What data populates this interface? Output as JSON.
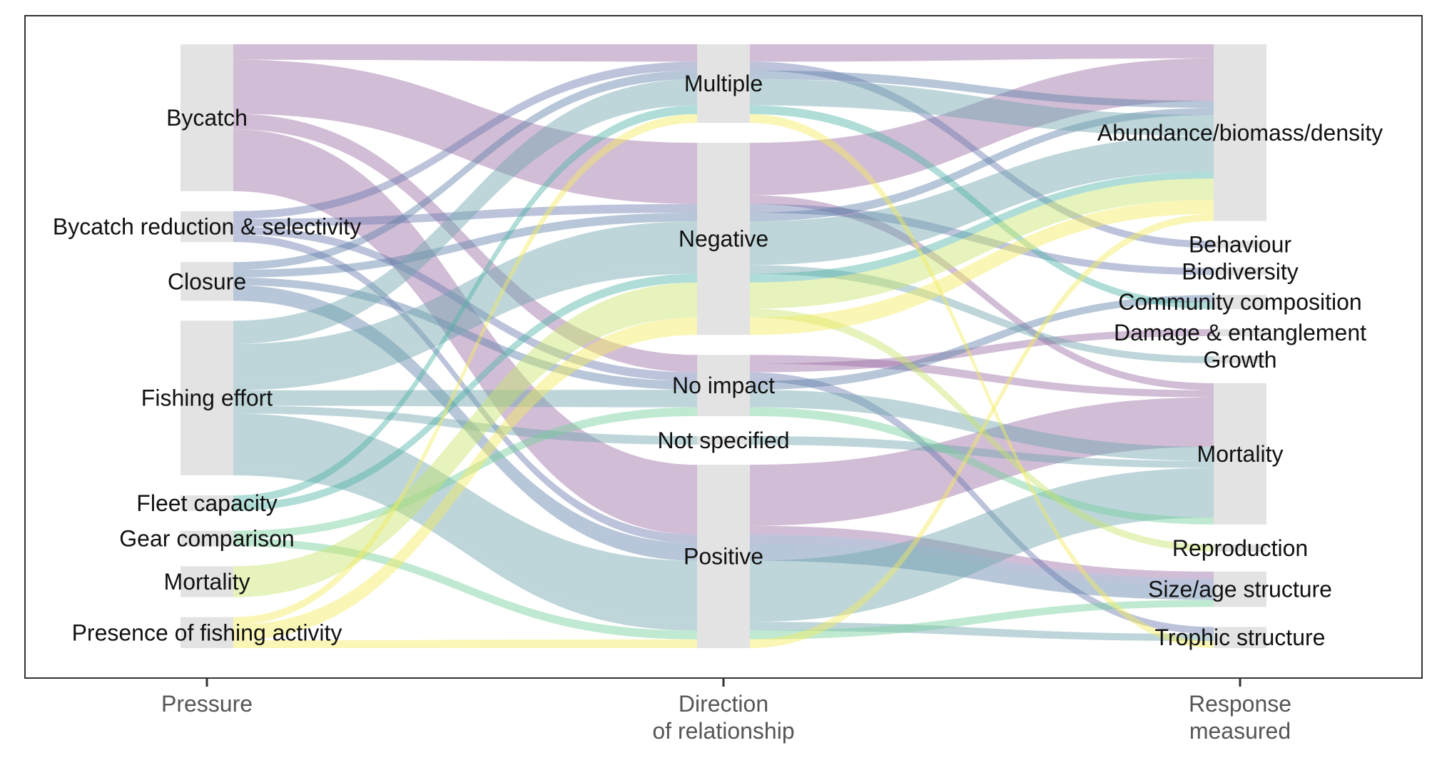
{
  "chart_data": {
    "type": "alluvial",
    "axes": [
      {
        "label_lines": [
          "Pressure"
        ]
      },
      {
        "label_lines": [
          "Direction",
          "of relationship"
        ]
      },
      {
        "label_lines": [
          "Response",
          "measured"
        ]
      }
    ],
    "nodes": {
      "pressure": [
        "Bycatch",
        "Bycatch reduction & selectivity",
        "Closure",
        "Fishing effort",
        "Fleet capacity",
        "Gear comparison",
        "Mortality",
        "Presence of fishing activity"
      ],
      "direction": [
        "Multiple",
        "Negative",
        "No impact",
        "Not specified",
        "Positive"
      ],
      "response": [
        "Abundance/biomass/density",
        "Behaviour",
        "Biodiversity",
        "Community composition",
        "Damage & entanglement",
        "Growth",
        "Mortality",
        "Reproduction",
        "Size/age structure",
        "Trophic structure"
      ]
    },
    "flows": [
      [
        "Bycatch",
        "Multiple",
        "Abundance/biomass/density",
        2
      ],
      [
        "Bycatch",
        "Negative",
        "Abundance/biomass/density",
        6
      ],
      [
        "Bycatch",
        "Negative",
        "Mortality",
        1
      ],
      [
        "Bycatch",
        "No impact",
        "Mortality",
        1
      ],
      [
        "Bycatch",
        "No impact",
        "Damage & entanglement",
        1
      ],
      [
        "Bycatch",
        "Positive",
        "Mortality",
        7
      ],
      [
        "Bycatch",
        "Positive",
        "Size/age structure",
        1
      ],
      [
        "Bycatch reduction & selectivity",
        "Multiple",
        "Behaviour",
        1
      ],
      [
        "Bycatch reduction & selectivity",
        "Negative",
        "Biodiversity",
        1
      ],
      [
        "Bycatch reduction & selectivity",
        "No impact",
        "Trophic structure",
        1
      ],
      [
        "Bycatch reduction & selectivity",
        "Positive",
        "Size/age structure",
        1
      ],
      [
        "Closure",
        "Multiple",
        "Abundance/biomass/density",
        1
      ],
      [
        "Closure",
        "Negative",
        "Abundance/biomass/density",
        1
      ],
      [
        "Closure",
        "No impact",
        "Community composition",
        1
      ],
      [
        "Closure",
        "Positive",
        "Size/age structure",
        2
      ],
      [
        "Fishing effort",
        "Multiple",
        "Abundance/biomass/density",
        3
      ],
      [
        "Fishing effort",
        "Negative",
        "Abundance/biomass/density",
        5
      ],
      [
        "Fishing effort",
        "Negative",
        "Growth",
        1
      ],
      [
        "Fishing effort",
        "No impact",
        "Mortality",
        2
      ],
      [
        "Fishing effort",
        "Not specified",
        "Mortality",
        1
      ],
      [
        "Fishing effort",
        "Positive",
        "Mortality",
        7
      ],
      [
        "Fishing effort",
        "Positive",
        "Trophic structure",
        1
      ],
      [
        "Fleet capacity",
        "Multiple",
        "Community composition",
        1
      ],
      [
        "Fleet capacity",
        "Negative",
        "Abundance/biomass/density",
        1
      ],
      [
        "Gear comparison",
        "No impact",
        "Mortality",
        1
      ],
      [
        "Gear comparison",
        "Positive",
        "Size/age structure",
        1
      ],
      [
        "Mortality",
        "Negative",
        "Abundance/biomass/density",
        3
      ],
      [
        "Mortality",
        "Negative",
        "Reproduction",
        1
      ],
      [
        "Presence of fishing activity",
        "Multiple",
        "Trophic structure",
        1
      ],
      [
        "Presence of fishing activity",
        "Negative",
        "Abundance/biomass/density",
        2
      ],
      [
        "Presence of fishing activity",
        "Positive",
        "Abundance/biomass/density",
        1
      ]
    ],
    "colors": {
      "Bycatch": "#9c6ca3",
      "Bycatch reduction & selectivity": "#6a7bb0",
      "Closure": "#5f80a8",
      "Fishing effort": "#6fa3ae",
      "Fleet capacity": "#4fb3a6",
      "Gear comparison": "#74cf9c",
      "Mortality": "#c7e56a",
      "Presence of fishing activity": "#f5ea5e"
    },
    "node_fill": "#e3e3e3",
    "frame_color": "#333333"
  }
}
